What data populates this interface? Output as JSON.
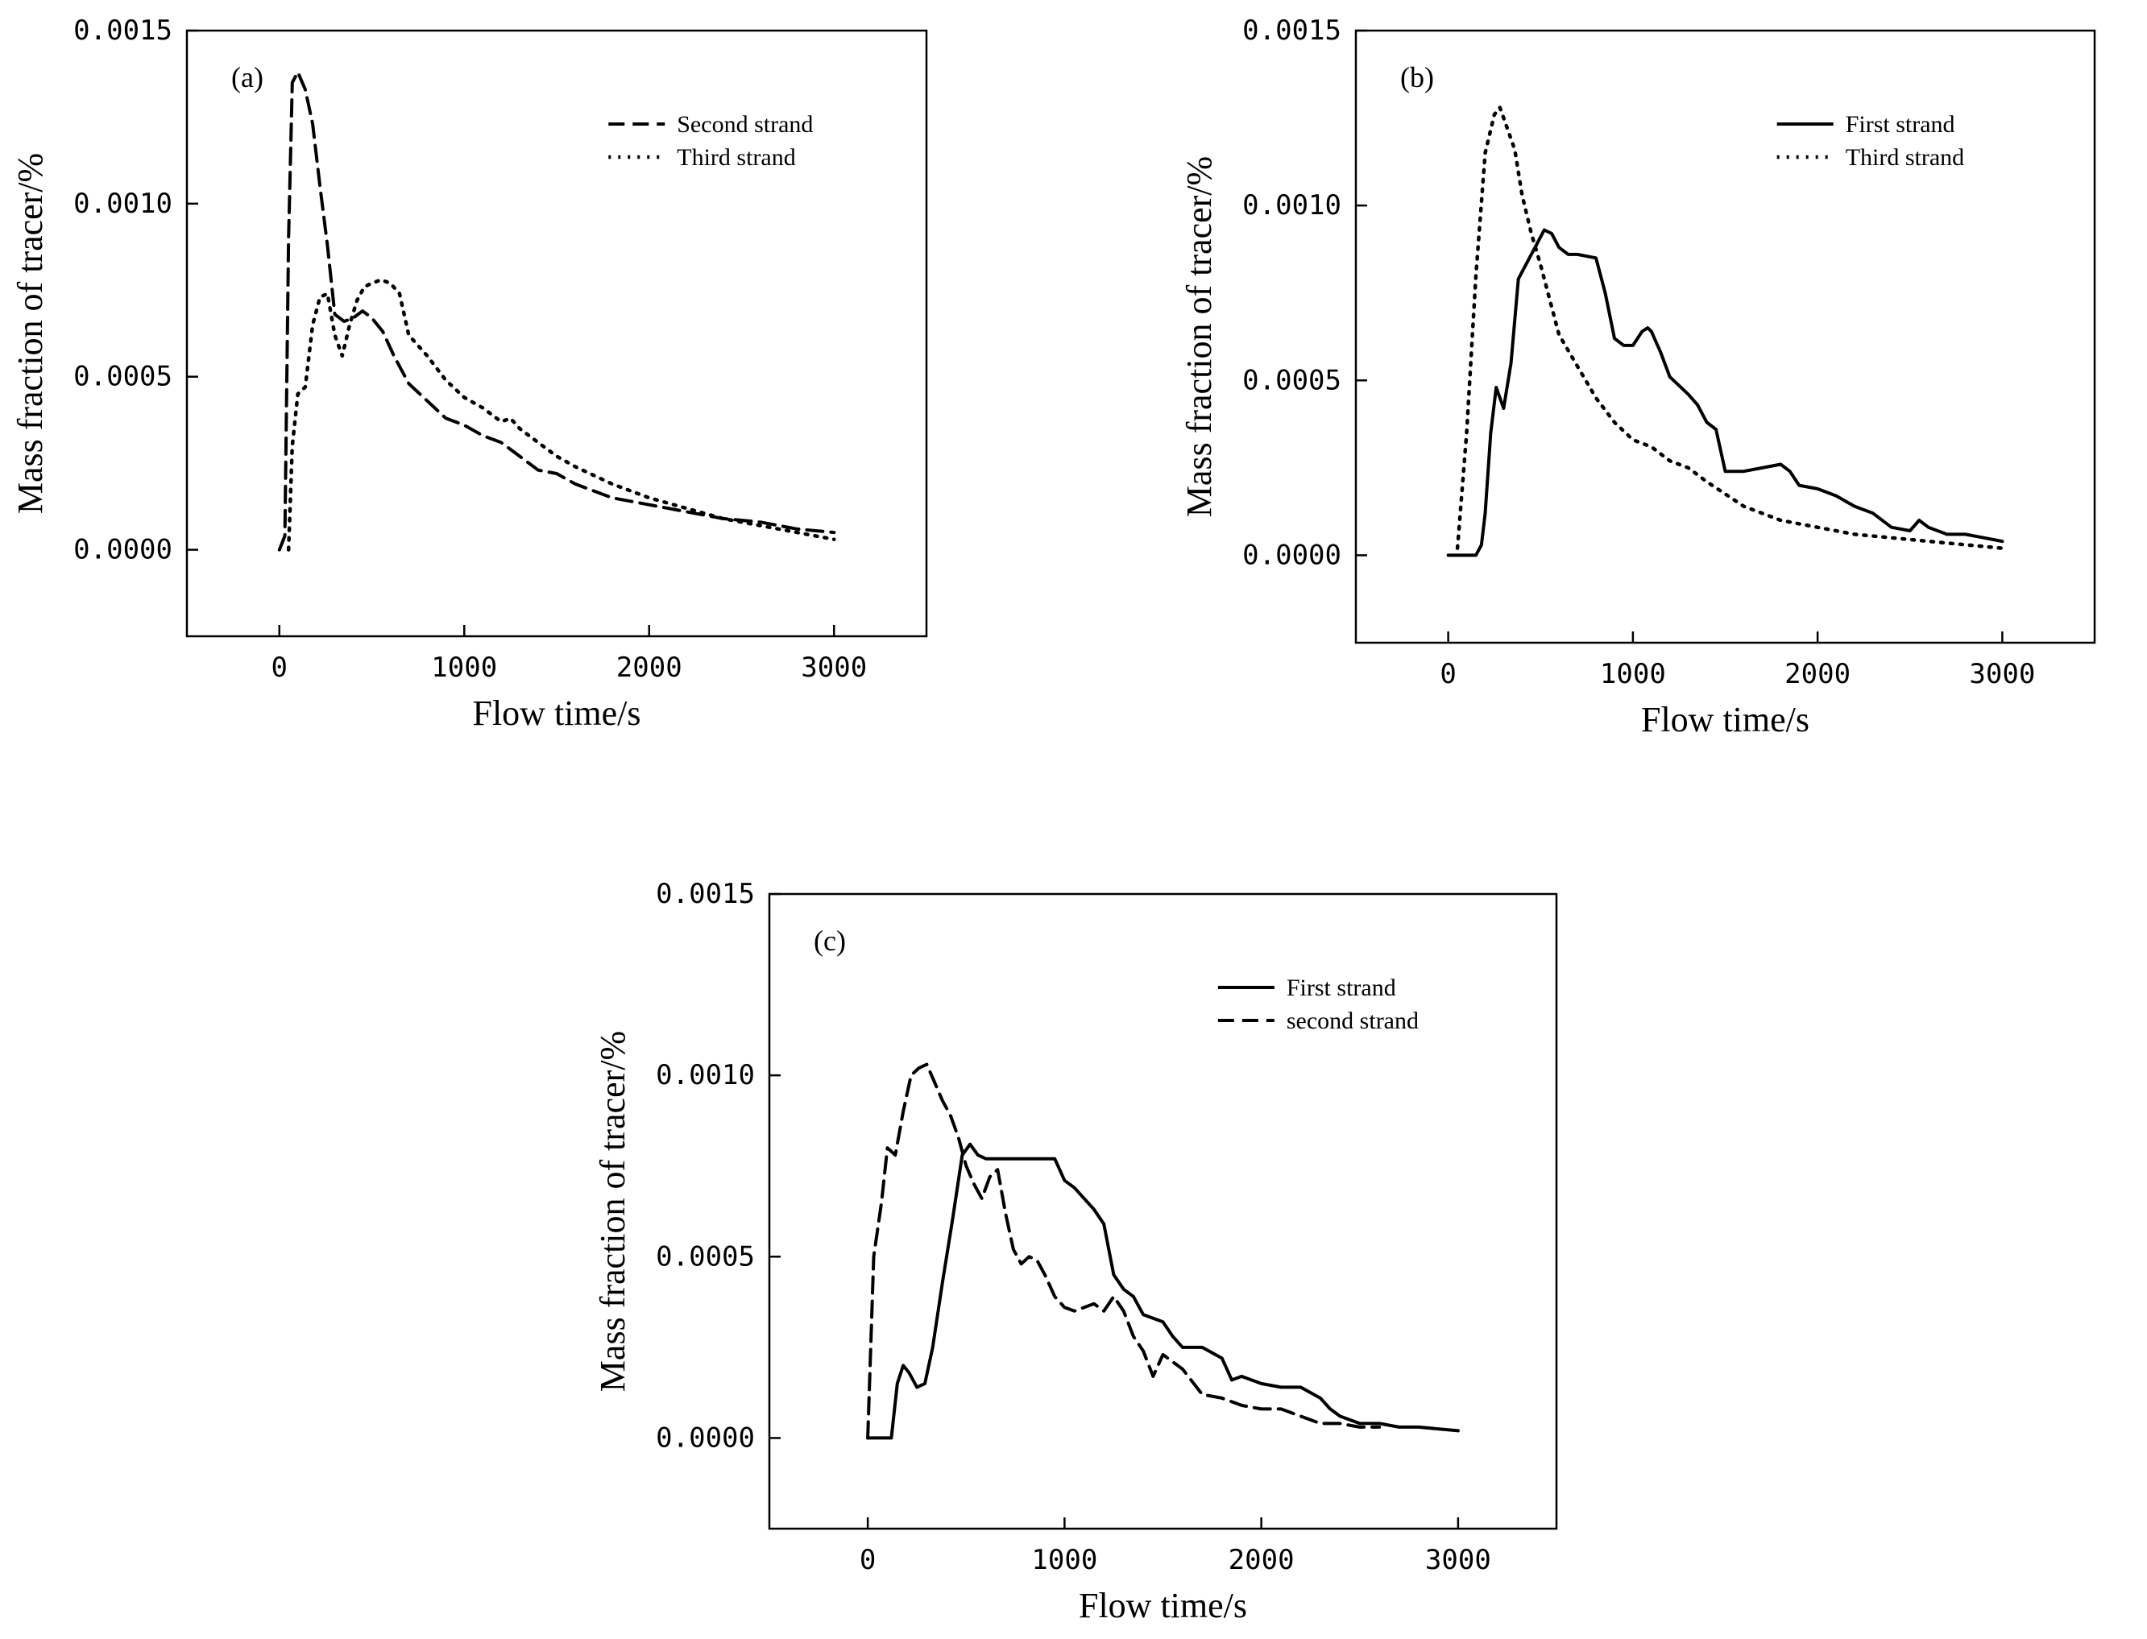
{
  "chart_data": [
    {
      "type": "line",
      "panel_label": "(a)",
      "xlabel": "Flow time/s",
      "ylabel": "Mass fraction of tracer/%",
      "xlim": [
        -500,
        3500
      ],
      "ylim": [
        -0.00025,
        0.0015
      ],
      "xticks": [
        0,
        1000,
        2000,
        3000
      ],
      "xtick_labels": [
        "0",
        "1000",
        "2000",
        "3000"
      ],
      "yticks": [
        0,
        0.0005,
        0.001,
        0.0015
      ],
      "ytick_labels": [
        "0.0000",
        "0.0005",
        "0.0010",
        "0.0015"
      ],
      "grid": false,
      "legend_position": "top-right",
      "series": [
        {
          "name": "Second strand",
          "style": "dashed",
          "x": [
            0,
            30,
            50,
            70,
            100,
            140,
            180,
            220,
            260,
            300,
            350,
            400,
            450,
            500,
            560,
            620,
            700,
            800,
            900,
            1000,
            1100,
            1200,
            1300,
            1400,
            1500,
            1600,
            1800,
            2000,
            2200,
            2400,
            2600,
            2800,
            3000
          ],
          "y": [
            0.0,
            4e-05,
            0.0009,
            0.00135,
            0.00138,
            0.00133,
            0.00123,
            0.00105,
            0.00088,
            0.00068,
            0.00066,
            0.00067,
            0.00069,
            0.00067,
            0.00063,
            0.00056,
            0.00048,
            0.00043,
            0.00038,
            0.00036,
            0.00033,
            0.00031,
            0.00027,
            0.00023,
            0.00022,
            0.00019,
            0.00015,
            0.00013,
            0.00011,
            9e-05,
            8e-05,
            6e-05,
            5e-05
          ]
        },
        {
          "name": "Third strand",
          "style": "dotted",
          "x": [
            50,
            70,
            100,
            140,
            180,
            220,
            260,
            300,
            340,
            380,
            420,
            460,
            500,
            550,
            600,
            650,
            700,
            800,
            900,
            1000,
            1100,
            1200,
            1250,
            1300,
            1400,
            1500,
            1600,
            1800,
            2000,
            2200,
            2400,
            2600,
            2800,
            3000
          ],
          "y": [
            0.0,
            0.0003,
            0.00045,
            0.00047,
            0.00065,
            0.00073,
            0.00074,
            0.00062,
            0.00056,
            0.00065,
            0.00072,
            0.00076,
            0.00077,
            0.00078,
            0.00077,
            0.00074,
            0.00062,
            0.00056,
            0.00049,
            0.00044,
            0.00041,
            0.00037,
            0.00038,
            0.00035,
            0.00031,
            0.00027,
            0.00024,
            0.00019,
            0.00015,
            0.00012,
            9e-05,
            7e-05,
            5e-05,
            3e-05
          ]
        }
      ]
    },
    {
      "type": "line",
      "panel_label": "(b)",
      "xlabel": "Flow time/s",
      "ylabel": "Mass fraction of tracer/%",
      "xlim": [
        -500,
        3500
      ],
      "ylim": [
        -0.00025,
        0.0015
      ],
      "xticks": [
        0,
        1000,
        2000,
        3000
      ],
      "xtick_labels": [
        "0",
        "1000",
        "2000",
        "3000"
      ],
      "yticks": [
        0,
        0.0005,
        0.001,
        0.0015
      ],
      "ytick_labels": [
        "0.0000",
        "0.0005",
        "0.0010",
        "0.0015"
      ],
      "grid": false,
      "legend_position": "top-right",
      "series": [
        {
          "name": "First strand",
          "style": "solid",
          "x": [
            0,
            150,
            180,
            200,
            230,
            260,
            300,
            340,
            380,
            430,
            480,
            520,
            560,
            600,
            650,
            700,
            800,
            850,
            900,
            950,
            1000,
            1050,
            1080,
            1100,
            1150,
            1200,
            1300,
            1350,
            1400,
            1450,
            1500,
            1600,
            1700,
            1800,
            1850,
            1900,
            2000,
            2100,
            2200,
            2300,
            2400,
            2500,
            2550,
            2600,
            2700,
            2800,
            2900,
            3000
          ],
          "y": [
            0.0,
            0.0,
            3e-05,
            0.00012,
            0.00035,
            0.00048,
            0.00042,
            0.00055,
            0.00079,
            0.00084,
            0.00089,
            0.00093,
            0.00092,
            0.00088,
            0.00086,
            0.00086,
            0.00085,
            0.00075,
            0.00062,
            0.0006,
            0.0006,
            0.00064,
            0.00065,
            0.00064,
            0.00058,
            0.00051,
            0.00046,
            0.00043,
            0.00038,
            0.00036,
            0.00024,
            0.00024,
            0.00025,
            0.00026,
            0.00024,
            0.0002,
            0.00019,
            0.00017,
            0.00014,
            0.00012,
            8e-05,
            7e-05,
            0.0001,
            8e-05,
            6e-05,
            6e-05,
            5e-05,
            4e-05
          ]
        },
        {
          "name": "Third strand",
          "style": "dotted",
          "x": [
            50,
            100,
            150,
            200,
            250,
            280,
            320,
            360,
            400,
            450,
            500,
            550,
            600,
            700,
            800,
            900,
            1000,
            1100,
            1200,
            1300,
            1400,
            1600,
            1800,
            2000,
            2200,
            2400,
            2600,
            2800,
            3000
          ],
          "y": [
            2e-05,
            0.00035,
            0.0008,
            0.00115,
            0.00126,
            0.00128,
            0.00122,
            0.00116,
            0.00103,
            0.00092,
            0.00083,
            0.00073,
            0.00063,
            0.00054,
            0.00045,
            0.00038,
            0.00033,
            0.00031,
            0.00027,
            0.00025,
            0.00021,
            0.00014,
            0.0001,
            8e-05,
            6e-05,
            5e-05,
            4e-05,
            3e-05,
            2e-05
          ]
        }
      ]
    },
    {
      "type": "line",
      "panel_label": "(c)",
      "xlabel": "Flow time/s",
      "ylabel": "Mass fraction of tracer/%",
      "xlim": [
        -500,
        3500
      ],
      "ylim": [
        -0.00025,
        0.0015
      ],
      "xticks": [
        0,
        1000,
        2000,
        3000
      ],
      "xtick_labels": [
        "0",
        "1000",
        "2000",
        "3000"
      ],
      "yticks": [
        0,
        0.0005,
        0.001,
        0.0015
      ],
      "ytick_labels": [
        "0.0000",
        "0.0005",
        "0.0010",
        "0.0015"
      ],
      "grid": false,
      "legend_position": "top-right",
      "series": [
        {
          "name": "First strand",
          "style": "solid",
          "x": [
            0,
            120,
            150,
            180,
            210,
            250,
            290,
            330,
            380,
            430,
            480,
            520,
            560,
            600,
            650,
            700,
            800,
            900,
            950,
            1000,
            1050,
            1100,
            1150,
            1200,
            1250,
            1300,
            1350,
            1400,
            1450,
            1500,
            1550,
            1600,
            1700,
            1800,
            1850,
            1900,
            2000,
            2100,
            2200,
            2300,
            2350,
            2400,
            2500,
            2600,
            2700,
            2800,
            3000
          ],
          "y": [
            0.0,
            0.0,
            0.00015,
            0.0002,
            0.00018,
            0.00014,
            0.00015,
            0.00025,
            0.00043,
            0.0006,
            0.00078,
            0.00081,
            0.00078,
            0.00077,
            0.00077,
            0.00077,
            0.00077,
            0.00077,
            0.00077,
            0.00071,
            0.00069,
            0.00066,
            0.00063,
            0.00059,
            0.00045,
            0.00041,
            0.00039,
            0.00034,
            0.00033,
            0.00032,
            0.00028,
            0.00025,
            0.00025,
            0.00022,
            0.00016,
            0.00017,
            0.00015,
            0.00014,
            0.00014,
            0.00011,
            8e-05,
            6e-05,
            4e-05,
            4e-05,
            3e-05,
            3e-05,
            2e-05
          ]
        },
        {
          "name": "second strand",
          "style": "dashed",
          "x": [
            0,
            30,
            70,
            100,
            140,
            180,
            220,
            260,
            300,
            340,
            380,
            420,
            460,
            500,
            540,
            580,
            620,
            660,
            700,
            740,
            780,
            820,
            860,
            900,
            950,
            1000,
            1050,
            1100,
            1150,
            1200,
            1250,
            1300,
            1350,
            1400,
            1450,
            1500,
            1600,
            1700,
            1800,
            1900,
            2000,
            2100,
            2200,
            2300,
            2400,
            2500,
            2600
          ],
          "y": [
            0.0,
            0.0005,
            0.00065,
            0.0008,
            0.00078,
            0.0009,
            0.001,
            0.00102,
            0.00103,
            0.00098,
            0.00093,
            0.00089,
            0.00083,
            0.00075,
            0.0007,
            0.00066,
            0.00072,
            0.00074,
            0.00062,
            0.00052,
            0.00048,
            0.0005,
            0.00049,
            0.00045,
            0.00039,
            0.00036,
            0.00035,
            0.00036,
            0.00037,
            0.00035,
            0.00039,
            0.00035,
            0.00028,
            0.00024,
            0.00017,
            0.00023,
            0.00019,
            0.00012,
            0.00011,
            9e-05,
            8e-05,
            8e-05,
            6e-05,
            4e-05,
            4e-05,
            3e-05,
            3e-05
          ]
        }
      ]
    }
  ]
}
